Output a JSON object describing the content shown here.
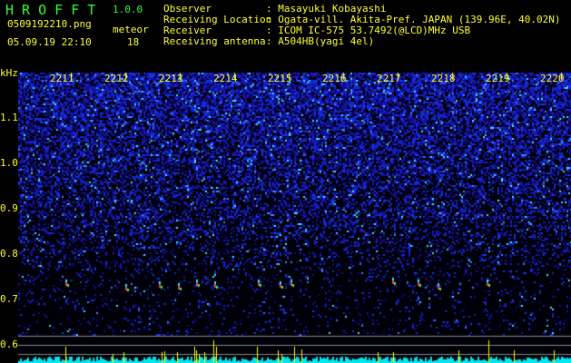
{
  "app": {
    "name": "H R O F F T",
    "version": "1.0.0"
  },
  "file": {
    "name": "0509192210.png",
    "datetime": "05.09.19 22:10"
  },
  "meteor": {
    "label": "meteor",
    "count": "18"
  },
  "info": [
    {
      "label": "Observer",
      "value": ": Masayuki Kobayashi"
    },
    {
      "label": "Receiving Location",
      "value": ": Ogata-vill. Akita-Pref. JAPAN (139.96E, 40.02N)"
    },
    {
      "label": "Receiver",
      "value": ": ICOM IC-575 53.7492(@LCD)MHz USB"
    },
    {
      "label": "Receiving antenna",
      "value": ": A504HB(yagi 4el)"
    }
  ],
  "spectrogram": {
    "freq_unit": "kHz",
    "freq_labels": [
      "1.1",
      "1.0",
      "0.9",
      "0.8",
      "0.7",
      "0.6"
    ],
    "time_labels": [
      "2211",
      "2212",
      "2213",
      "2214",
      "2215",
      "2216",
      "2217",
      "2218",
      "2219",
      "2220"
    ],
    "colors": {
      "background": "#000010",
      "noise": "#1a2aff",
      "signal_low": "#00ffff",
      "signal_high": "#ff3366",
      "peak_bar": "#ffff00",
      "level_bar": "#00ffff",
      "label": "#ffff33",
      "title": "#33ff33"
    }
  }
}
